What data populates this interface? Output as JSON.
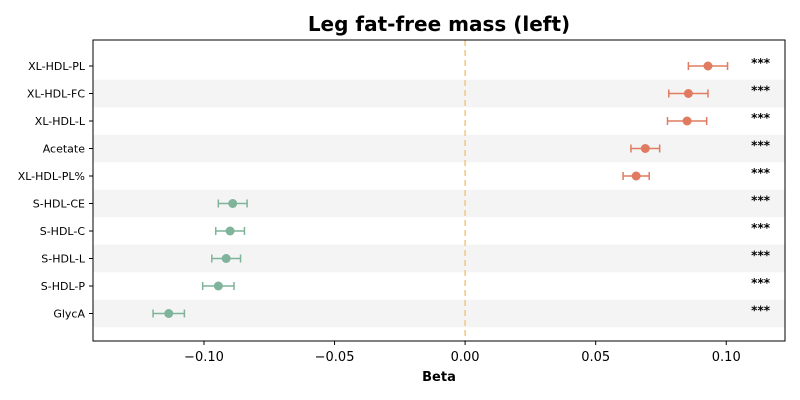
{
  "chart_data": {
    "type": "forest",
    "title": "Leg fat-free mass (left)",
    "xlabel": "Beta",
    "ylabel": "",
    "xlim": [
      -0.1425,
      0.1225
    ],
    "xticks": [
      -0.1,
      -0.05,
      0.0,
      0.05,
      0.1
    ],
    "xtick_labels": [
      "−0.10",
      "−0.05",
      "0.00",
      "0.05",
      "0.10"
    ],
    "reference_line": 0.0,
    "colors": {
      "positive": "#e07b60",
      "negative": "#7fb39a",
      "reference_line": "#f5c77e",
      "band": "#f4f4f4"
    },
    "rows": [
      {
        "label": "XL-HDL-PL",
        "beta": 0.093,
        "ci": [
          0.0855,
          0.1005
        ],
        "sig": "***"
      },
      {
        "label": "XL-HDL-FC",
        "beta": 0.0855,
        "ci": [
          0.078,
          0.093
        ],
        "sig": "***"
      },
      {
        "label": "XL-HDL-L",
        "beta": 0.085,
        "ci": [
          0.0775,
          0.0925
        ],
        "sig": "***"
      },
      {
        "label": "Acetate",
        "beta": 0.069,
        "ci": [
          0.0635,
          0.0745
        ],
        "sig": "***"
      },
      {
        "label": "XL-HDL-PL%",
        "beta": 0.0655,
        "ci": [
          0.0605,
          0.0705
        ],
        "sig": "***"
      },
      {
        "label": "S-HDL-CE",
        "beta": -0.089,
        "ci": [
          -0.0945,
          -0.0835
        ],
        "sig": "***"
      },
      {
        "label": "S-HDL-C",
        "beta": -0.09,
        "ci": [
          -0.0955,
          -0.0845
        ],
        "sig": "***"
      },
      {
        "label": "S-HDL-L",
        "beta": -0.0915,
        "ci": [
          -0.097,
          -0.086
        ],
        "sig": "***"
      },
      {
        "label": "S-HDL-P",
        "beta": -0.0945,
        "ci": [
          -0.1005,
          -0.0885
        ],
        "sig": "***"
      },
      {
        "label": "GlycA",
        "beta": -0.1135,
        "ci": [
          -0.1195,
          -0.1075
        ],
        "sig": "***"
      }
    ]
  }
}
